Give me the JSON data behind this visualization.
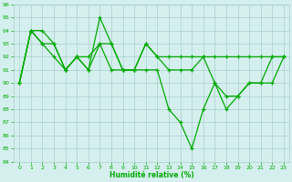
{
  "x": [
    0,
    1,
    2,
    3,
    4,
    5,
    6,
    7,
    8,
    9,
    10,
    11,
    12,
    13,
    14,
    15,
    16,
    17,
    18,
    19,
    20,
    21,
    22,
    23
  ],
  "line1": [
    90,
    94,
    94,
    93,
    91,
    92,
    92,
    93,
    93,
    91,
    91,
    93,
    92,
    92,
    92,
    92,
    92,
    92,
    92,
    92,
    92,
    92,
    92,
    92
  ],
  "line2": [
    90,
    94,
    93,
    93,
    91,
    92,
    91,
    95,
    93,
    91,
    91,
    93,
    92,
    91,
    91,
    91,
    92,
    90,
    89,
    89,
    90,
    90,
    90,
    92
  ],
  "line3": [
    90,
    94,
    93,
    92,
    91,
    92,
    91,
    93,
    91,
    91,
    91,
    91,
    91,
    88,
    87,
    85,
    88,
    90,
    88,
    89,
    90,
    90,
    92,
    92
  ],
  "background_color": "#d5efee",
  "grid_color": "#a8cece",
  "line_color": "#00aa00",
  "xlabel": "Humidité relative (%)",
  "ylim": [
    84,
    96
  ],
  "xlim": [
    -0.5,
    23.5
  ],
  "yticks": [
    84,
    85,
    86,
    87,
    88,
    89,
    90,
    91,
    92,
    93,
    94,
    95,
    96
  ],
  "xticks": [
    0,
    1,
    2,
    3,
    4,
    5,
    6,
    7,
    8,
    9,
    10,
    11,
    12,
    13,
    14,
    15,
    16,
    17,
    18,
    19,
    20,
    21,
    22,
    23
  ]
}
